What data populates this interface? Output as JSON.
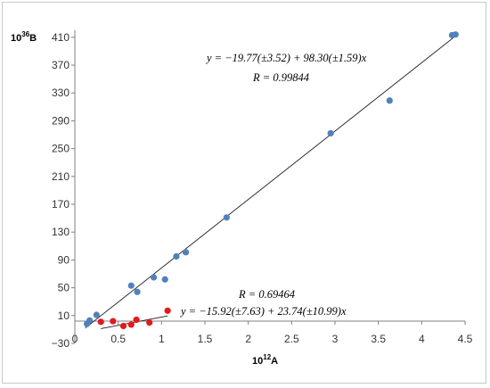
{
  "chart_data": {
    "type": "scatter",
    "xlabel": {
      "base": "10",
      "exp": "12",
      "var": "A"
    },
    "ylabel": {
      "base": "10",
      "exp": "36",
      "var": "B"
    },
    "xlim": [
      0,
      4.5
    ],
    "ylim": [
      -30,
      420
    ],
    "x_ticks": [
      0,
      0.5,
      1,
      1.5,
      2,
      2.5,
      3,
      3.5,
      4,
      4.5
    ],
    "x_tick_labels": [
      "0",
      "0.5",
      "1",
      "1.5",
      "2",
      "2.5",
      "3",
      "3.5",
      "4",
      "4.5"
    ],
    "y_ticks": [
      -30,
      10,
      50,
      90,
      130,
      170,
      210,
      250,
      290,
      330,
      370,
      410
    ],
    "y_tick_labels": [
      "−30",
      "10",
      "50",
      "90",
      "130",
      "170",
      "210",
      "250",
      "290",
      "330",
      "370",
      "410"
    ],
    "grid": false,
    "series": [
      {
        "color": "#4f81bd",
        "points": [
          [
            0.14,
            -2
          ],
          [
            0.17,
            3
          ],
          [
            0.25,
            11
          ],
          [
            0.65,
            53
          ],
          [
            0.72,
            44
          ],
          [
            0.91,
            65
          ],
          [
            1.04,
            62
          ],
          [
            1.17,
            95
          ],
          [
            1.28,
            101
          ],
          [
            1.75,
            151
          ],
          [
            2.95,
            272
          ],
          [
            3.63,
            319
          ],
          [
            4.35,
            413
          ],
          [
            4.39,
            414
          ]
        ],
        "fit": {
          "intercept": -19.77,
          "slope": 98.3,
          "x_range": [
            0.12,
            4.42
          ]
        }
      },
      {
        "color": "#e31a1c",
        "points": [
          [
            0.3,
            1
          ],
          [
            0.44,
            2
          ],
          [
            0.56,
            -5
          ],
          [
            0.65,
            -3
          ],
          [
            0.71,
            4
          ],
          [
            0.86,
            0
          ],
          [
            1.07,
            17
          ]
        ],
        "fit": {
          "intercept": -15.92,
          "slope": 23.74,
          "x_range": [
            0.3,
            1.07
          ]
        }
      }
    ],
    "annotations": {
      "eq1": "y = −19.77(±3.52) + 98.30(±1.59)x",
      "r1": "R = 0.99844",
      "r2": "R = 0.69464",
      "eq2": "y = −15.92(±7.63) + 23.74(±10.99)x"
    }
  }
}
